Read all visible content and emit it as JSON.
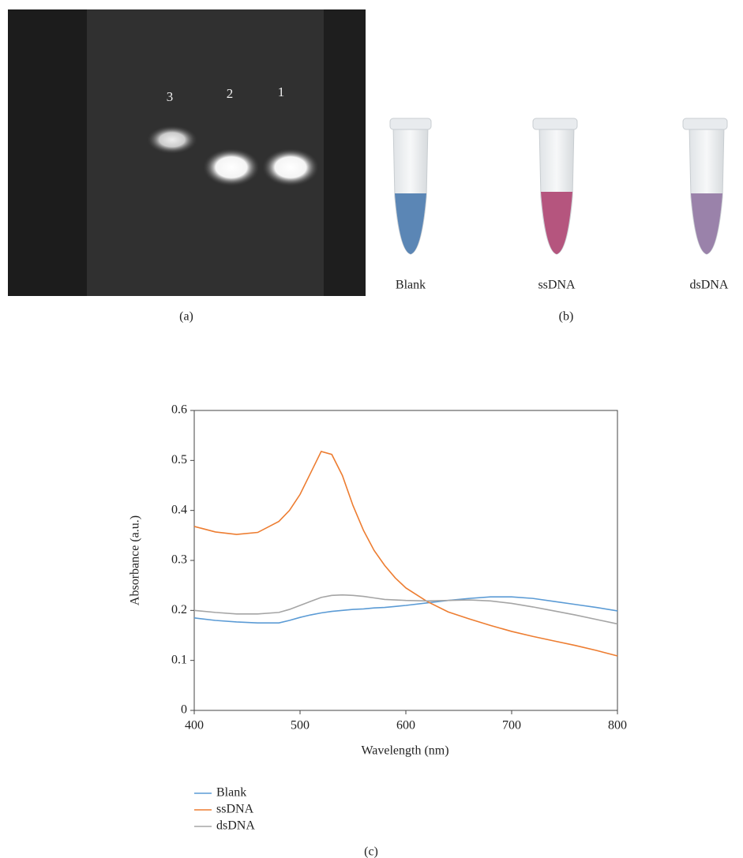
{
  "panel_a": {
    "label": "(a)",
    "lanes": [
      "3",
      "2",
      "1"
    ]
  },
  "panel_b": {
    "label": "(b)",
    "tubes": [
      "Blank",
      "ssDNA",
      "dsDNA"
    ]
  },
  "chart_data": {
    "type": "line",
    "panel_label": "(c)",
    "x_label": "Wavelength (nm)",
    "y_label": "Absorbance (a.u.)",
    "x": [
      400,
      420,
      440,
      460,
      480,
      490,
      500,
      510,
      520,
      530,
      540,
      550,
      560,
      570,
      580,
      590,
      600,
      620,
      640,
      660,
      680,
      700,
      720,
      740,
      760,
      780,
      800
    ],
    "series": [
      {
        "name": "Blank",
        "color": "#5b9bd5",
        "values": [
          0.185,
          0.18,
          0.177,
          0.175,
          0.175,
          0.18,
          0.186,
          0.191,
          0.195,
          0.198,
          0.2,
          0.202,
          0.203,
          0.205,
          0.206,
          0.208,
          0.21,
          0.215,
          0.22,
          0.224,
          0.227,
          0.227,
          0.224,
          0.218,
          0.212,
          0.206,
          0.199
        ]
      },
      {
        "name": "ssDNA",
        "color": "#ed7d31",
        "values": [
          0.368,
          0.357,
          0.352,
          0.356,
          0.378,
          0.4,
          0.432,
          0.475,
          0.518,
          0.512,
          0.47,
          0.41,
          0.36,
          0.32,
          0.29,
          0.265,
          0.245,
          0.218,
          0.197,
          0.183,
          0.17,
          0.158,
          0.148,
          0.139,
          0.13,
          0.12,
          0.109
        ]
      },
      {
        "name": "dsDNA",
        "color": "#a5a5a5",
        "values": [
          0.2,
          0.196,
          0.193,
          0.193,
          0.196,
          0.202,
          0.21,
          0.218,
          0.226,
          0.23,
          0.231,
          0.23,
          0.228,
          0.225,
          0.222,
          0.221,
          0.22,
          0.219,
          0.22,
          0.221,
          0.219,
          0.214,
          0.207,
          0.199,
          0.191,
          0.182,
          0.173
        ]
      }
    ],
    "xlim": [
      400,
      800
    ],
    "xticks": [
      400,
      500,
      600,
      700,
      800
    ],
    "ylim": [
      0,
      0.6
    ],
    "yticks": [
      0,
      0.1,
      0.2,
      0.3,
      0.4,
      0.5,
      0.6
    ],
    "grid": false,
    "legend": "bottom-left"
  }
}
